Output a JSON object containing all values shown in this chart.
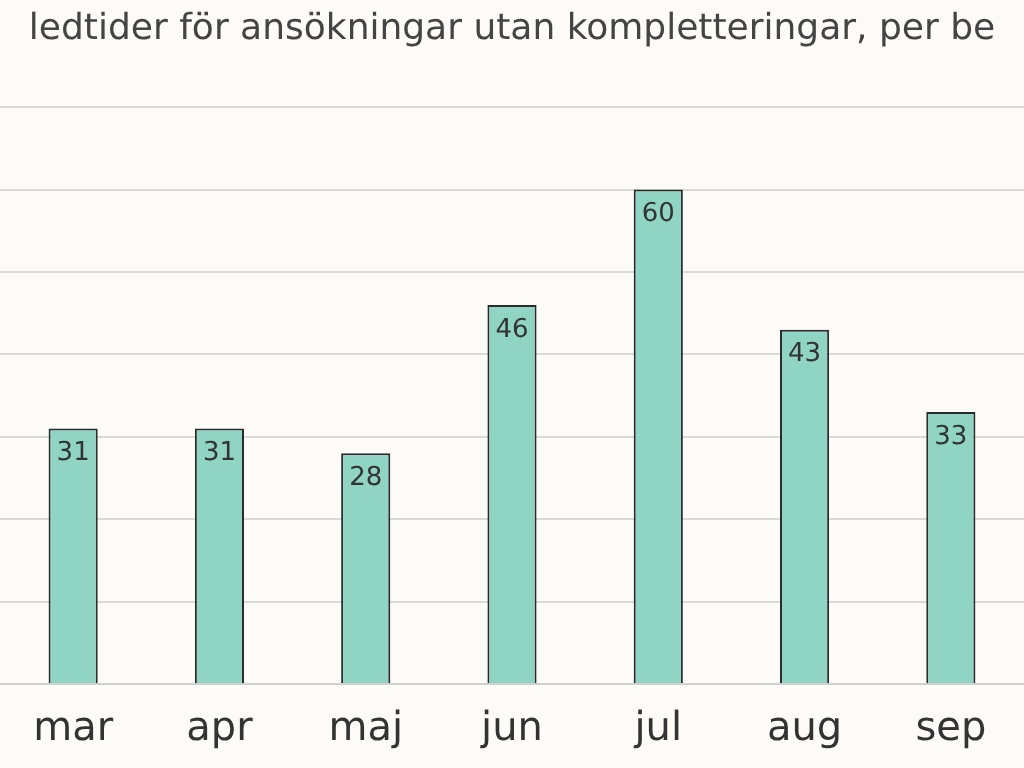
{
  "chart_data": {
    "type": "bar",
    "title": "ledtider för ansökningar utan kompletteringar, per be",
    "categories": [
      "mar",
      "apr",
      "maj",
      "jun",
      "jul",
      "aug",
      "sep"
    ],
    "values": [
      31,
      31,
      28,
      46,
      60,
      43,
      33
    ],
    "color": "#90d4c4",
    "ylim": [
      0,
      70
    ],
    "yticks": [
      {
        "value": 0,
        "label": null
      },
      {
        "value": 10,
        "label": null
      },
      {
        "value": 20,
        "label": null
      },
      {
        "value": 30,
        "label": null
      },
      {
        "value": 40,
        "label": null
      },
      {
        "value": 50,
        "label": null
      },
      {
        "value": 60,
        "label": null
      },
      {
        "value": 70,
        "label": null
      }
    ],
    "tick_labels": "x",
    "grid": "y",
    "data_labels": true
  }
}
